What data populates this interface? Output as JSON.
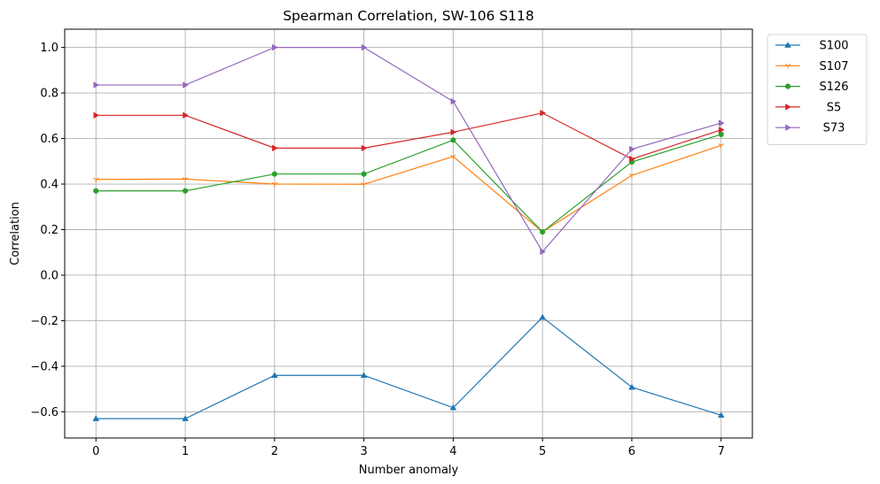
{
  "chart_data": {
    "type": "line",
    "title": "Spearman Correlation, SW-106  S118",
    "xlabel": "Number anomaly",
    "ylabel": "Correlation",
    "x": [
      0,
      1,
      2,
      3,
      4,
      5,
      6,
      7
    ],
    "xticks": [
      "0",
      "1",
      "2",
      "3",
      "4",
      "5",
      "6",
      "7"
    ],
    "yticks": [
      "−0.6",
      "−0.4",
      "−0.2",
      "0.0",
      "0.2",
      "0.4",
      "0.6",
      "0.8",
      "1.0"
    ],
    "ytick_values": [
      -0.6,
      -0.4,
      -0.2,
      0.0,
      0.2,
      0.4,
      0.6,
      0.8,
      1.0
    ],
    "xlim": [
      -0.35,
      7.35
    ],
    "ylim": [
      -0.715,
      1.08
    ],
    "grid": true,
    "legend_position": "outside-top-right",
    "series": [
      {
        "name": "S100",
        "color": "#1f77b4",
        "marker": "triangle-up",
        "values": [
          -0.63,
          -0.63,
          -0.44,
          -0.44,
          -0.582,
          -0.185,
          -0.492,
          -0.615
        ]
      },
      {
        "name": "S107",
        "color": "#ff7f0e",
        "marker": "tri-down",
        "values": [
          0.42,
          0.422,
          0.4,
          0.399,
          0.521,
          0.19,
          0.438,
          0.57
        ]
      },
      {
        "name": "S126",
        "color": "#2ca02c",
        "marker": "circle",
        "values": [
          0.37,
          0.37,
          0.444,
          0.444,
          0.593,
          0.19,
          0.497,
          0.618
        ]
      },
      {
        "name": "S5",
        "color": "#d62728",
        "marker": "triangle-right",
        "values": [
          0.702,
          0.702,
          0.558,
          0.558,
          0.628,
          0.712,
          0.51,
          0.638
        ]
      },
      {
        "name": "S73",
        "color": "#9467bd",
        "marker": "triangle-right",
        "values": [
          0.835,
          0.835,
          1.0,
          1.0,
          0.763,
          0.103,
          0.553,
          0.668
        ]
      }
    ]
  }
}
